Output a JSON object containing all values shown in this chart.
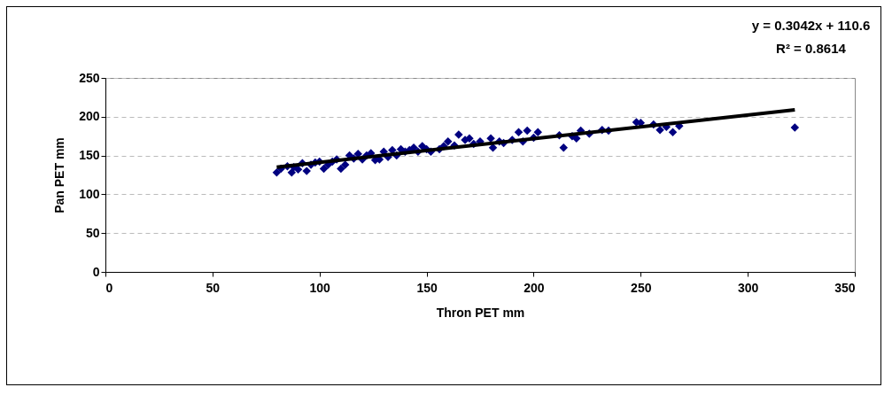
{
  "chart_data": {
    "type": "scatter",
    "xlabel": "Thron PET mm",
    "ylabel": "Pan PET mm",
    "annotations": [
      "y = 0.3042x + 110.6",
      "R² = 0.8614"
    ],
    "xlim": [
      0,
      350
    ],
    "xticks": [
      0,
      50,
      100,
      150,
      200,
      250,
      300,
      350
    ],
    "ylim": [
      0,
      250
    ],
    "yticks": [
      0,
      50,
      100,
      150,
      200,
      250
    ],
    "grid": "y",
    "marker": "diamond",
    "series": [
      {
        "color": "#000080",
        "x": [
          80,
          82,
          85,
          87,
          88,
          90,
          92,
          94,
          96,
          98,
          100,
          102,
          104,
          106,
          108,
          110,
          112,
          114,
          116,
          118,
          120,
          122,
          124,
          126,
          128,
          130,
          132,
          134,
          136,
          138,
          140,
          142,
          144,
          146,
          148,
          150,
          152,
          156,
          158,
          160,
          163,
          165,
          168,
          170,
          172,
          175,
          180,
          181,
          184,
          186,
          190,
          193,
          195,
          197,
          200,
          202,
          212,
          214,
          218,
          220,
          222,
          226,
          232,
          235,
          248,
          250,
          256,
          259,
          262,
          265,
          268,
          322
        ],
        "values": [
          128,
          133,
          136,
          128,
          135,
          132,
          140,
          130,
          138,
          141,
          142,
          133,
          138,
          142,
          145,
          133,
          138,
          150,
          146,
          152,
          145,
          150,
          153,
          144,
          145,
          155,
          148,
          157,
          150,
          158,
          155,
          157,
          160,
          155,
          162,
          158,
          155,
          158,
          162,
          168,
          163,
          177,
          170,
          172,
          165,
          168,
          172,
          160,
          168,
          166,
          170,
          180,
          168,
          182,
          173,
          180,
          176,
          160,
          175,
          172,
          182,
          178,
          183,
          182,
          193,
          192,
          190,
          183,
          187,
          180,
          188,
          186
        ]
      },
      {
        "type": "line",
        "color": "#000000",
        "marker": "none",
        "x": [
          80,
          322
        ],
        "values": [
          135,
          209
        ]
      }
    ]
  }
}
